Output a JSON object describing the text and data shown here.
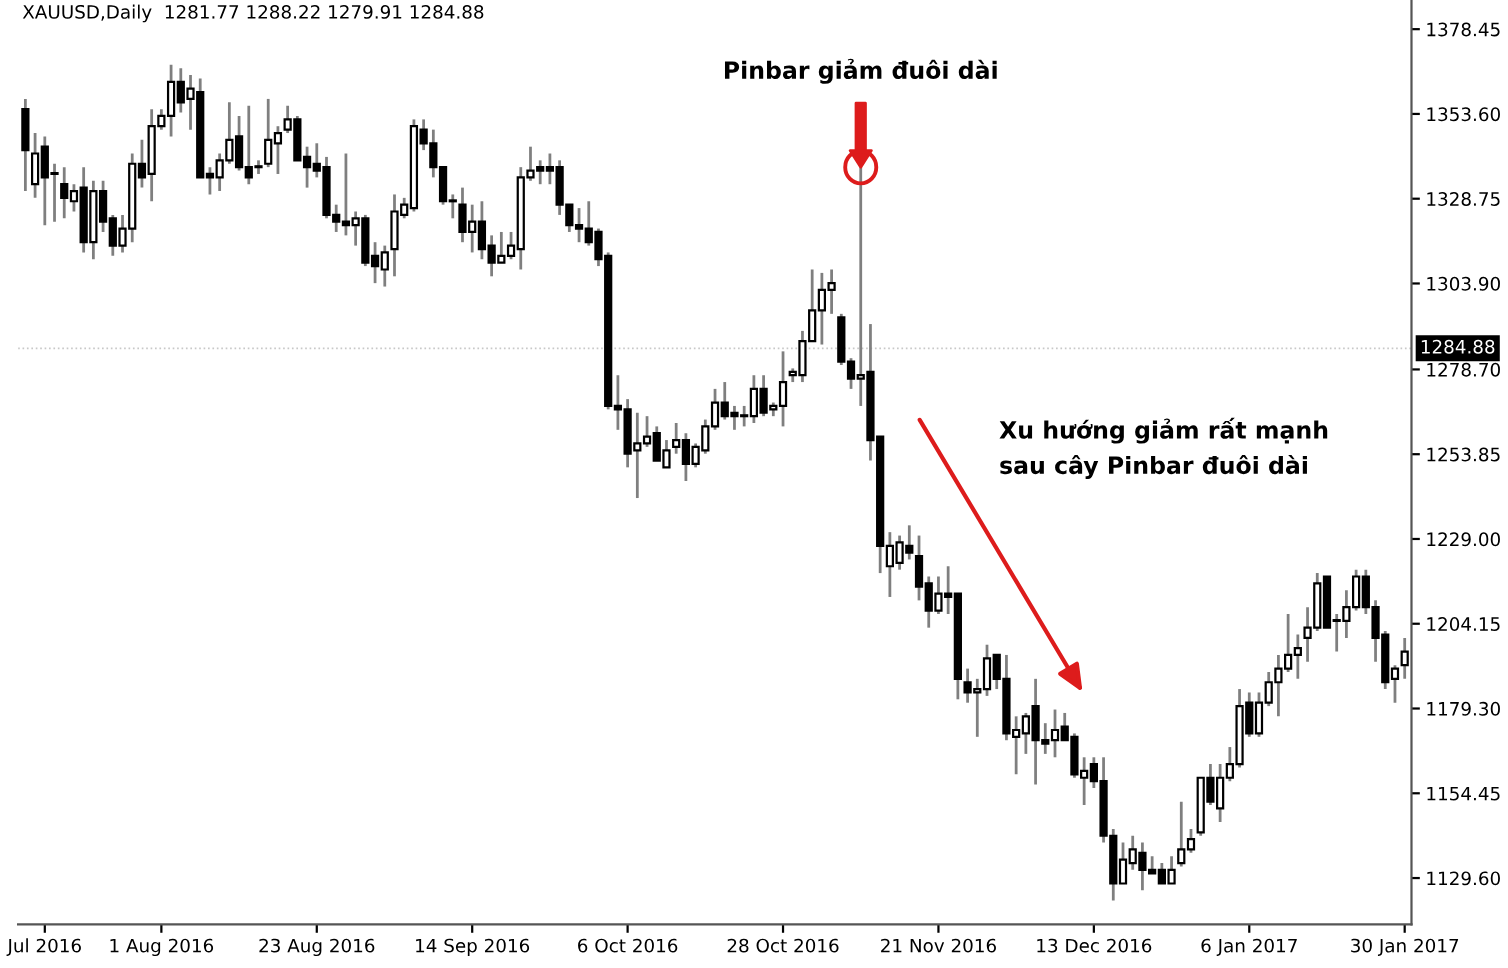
{
  "chart_data": {
    "type": "candlestick",
    "title": "XAUUSD,Daily  1281.77 1288.22 1279.91 1284.88",
    "categories": [
      null,
      null,
      "Jul 2016",
      null,
      null,
      null,
      null,
      null,
      null,
      null,
      null,
      null,
      null,
      null,
      "1 Aug 2016",
      null,
      null,
      null,
      null,
      null,
      null,
      null,
      null,
      null,
      null,
      null,
      null,
      null,
      null,
      null,
      "23 Aug 2016",
      null,
      null,
      null,
      null,
      null,
      null,
      null,
      null,
      null,
      null,
      null,
      null,
      null,
      null,
      null,
      "14 Sep 2016",
      null,
      null,
      null,
      null,
      null,
      null,
      null,
      null,
      null,
      null,
      null,
      null,
      null,
      null,
      null,
      "6 Oct 2016",
      null,
      null,
      null,
      null,
      null,
      null,
      null,
      null,
      null,
      null,
      null,
      null,
      null,
      null,
      null,
      "28 Oct 2016",
      null,
      null,
      null,
      null,
      null,
      null,
      null,
      null,
      null,
      null,
      null,
      null,
      null,
      null,
      null,
      "21 Nov 2016",
      null,
      null,
      null,
      null,
      null,
      null,
      null,
      null,
      null,
      null,
      null,
      null,
      null,
      null,
      null,
      "13 Dec 2016",
      null,
      null,
      null,
      null,
      null,
      null,
      null,
      null,
      null,
      null,
      null,
      null,
      null,
      null,
      null,
      "6 Jan 2017",
      null,
      null,
      null,
      null,
      null,
      null,
      null,
      null,
      null,
      null,
      null,
      null,
      null,
      null,
      null,
      "30 Jan 2017"
    ],
    "ohlc": [
      [
        1355,
        1358,
        1331,
        1343
      ],
      [
        1333,
        1348,
        1329,
        1342
      ],
      [
        1344,
        1347,
        1321,
        1335
      ],
      [
        1336,
        1339,
        1322,
        1336
      ],
      [
        1333,
        1338,
        1323,
        1329
      ],
      [
        1328,
        1333,
        1325,
        1331
      ],
      [
        1332,
        1338,
        1313,
        1316
      ],
      [
        1316,
        1334,
        1311,
        1331
      ],
      [
        1331,
        1334,
        1319,
        1322
      ],
      [
        1323,
        1324,
        1312,
        1315
      ],
      [
        1315,
        1324,
        1313,
        1320
      ],
      [
        1320,
        1342,
        1316,
        1339
      ],
      [
        1339,
        1346,
        1332,
        1335
      ],
      [
        1336,
        1355,
        1328,
        1350
      ],
      [
        1350,
        1355,
        1349,
        1353
      ],
      [
        1353,
        1368,
        1347,
        1363
      ],
      [
        1363,
        1367,
        1354,
        1357
      ],
      [
        1358,
        1365,
        1349,
        1361
      ],
      [
        1360,
        1364,
        1335,
        1335
      ],
      [
        1336,
        1338,
        1330,
        1335
      ],
      [
        1335,
        1342,
        1331,
        1340
      ],
      [
        1340,
        1357,
        1339,
        1346
      ],
      [
        1347,
        1353,
        1337,
        1338
      ],
      [
        1338,
        1356,
        1333,
        1335
      ],
      [
        1338,
        1340,
        1336,
        1338
      ],
      [
        1339,
        1358,
        1338,
        1346
      ],
      [
        1345,
        1350,
        1336,
        1348
      ],
      [
        1349,
        1356,
        1348,
        1352
      ],
      [
        1352,
        1353,
        1340,
        1340
      ],
      [
        1341,
        1344,
        1332,
        1338
      ],
      [
        1339,
        1345,
        1335,
        1337
      ],
      [
        1338,
        1341,
        1323,
        1324
      ],
      [
        1324,
        1327,
        1319,
        1322
      ],
      [
        1322,
        1342,
        1318,
        1321
      ],
      [
        1321,
        1325,
        1315,
        1323
      ],
      [
        1323,
        1324,
        1309,
        1310
      ],
      [
        1312,
        1316,
        1304,
        1309
      ],
      [
        1308,
        1315,
        1303,
        1313
      ],
      [
        1314,
        1330,
        1306,
        1325
      ],
      [
        1324,
        1329,
        1323,
        1327
      ],
      [
        1326,
        1352,
        1325,
        1350
      ],
      [
        1349,
        1352,
        1343,
        1345
      ],
      [
        1345,
        1349,
        1335,
        1338
      ],
      [
        1338,
        1338,
        1327,
        1328
      ],
      [
        1328,
        1330,
        1323,
        1328
      ],
      [
        1327,
        1332,
        1316,
        1319
      ],
      [
        1319,
        1327,
        1313,
        1322
      ],
      [
        1322,
        1328,
        1311,
        1314
      ],
      [
        1315,
        1318,
        1306,
        1310
      ],
      [
        1310,
        1319,
        1310,
        1312
      ],
      [
        1312,
        1319,
        1311,
        1315
      ],
      [
        1314,
        1338,
        1308,
        1335
      ],
      [
        1335,
        1344,
        1334,
        1337
      ],
      [
        1338,
        1340,
        1333,
        1337
      ],
      [
        1338,
        1342,
        1333,
        1337
      ],
      [
        1338,
        1340,
        1324,
        1327
      ],
      [
        1327,
        1327,
        1319,
        1321
      ],
      [
        1321,
        1326,
        1316,
        1320
      ],
      [
        1320,
        1328,
        1315,
        1316
      ],
      [
        1319,
        1320,
        1309,
        1311
      ],
      [
        1312,
        1313,
        1267,
        1268
      ],
      [
        1268,
        1277,
        1261,
        1267
      ],
      [
        1267,
        1270,
        1250,
        1254
      ],
      [
        1255,
        1266,
        1241,
        1257
      ],
      [
        1257,
        1265,
        1256,
        1259
      ],
      [
        1260,
        1262,
        1252,
        1252
      ],
      [
        1250,
        1258,
        1250,
        1255
      ],
      [
        1256,
        1263,
        1254,
        1258
      ],
      [
        1258,
        1260,
        1246,
        1251
      ],
      [
        1251,
        1257,
        1250,
        1256
      ],
      [
        1255,
        1264,
        1254,
        1262
      ],
      [
        1262,
        1273,
        1261,
        1269
      ],
      [
        1269,
        1275,
        1264,
        1265
      ],
      [
        1266,
        1268,
        1261,
        1265
      ],
      [
        1265,
        1268,
        1262,
        1265
      ],
      [
        1265,
        1277,
        1263,
        1273
      ],
      [
        1273,
        1277,
        1265,
        1266
      ],
      [
        1267,
        1269,
        1265,
        1268
      ],
      [
        1268,
        1284,
        1262,
        1275
      ],
      [
        1277,
        1279,
        1275,
        1278
      ],
      [
        1277,
        1290,
        1275,
        1287
      ],
      [
        1287,
        1308,
        1287,
        1296
      ],
      [
        1296,
        1307,
        1286,
        1302
      ],
      [
        1302,
        1308,
        1295,
        1304
      ],
      [
        1294,
        1295,
        1280,
        1281
      ],
      [
        1281,
        1282,
        1273,
        1276
      ],
      [
        1276,
        1338,
        1268,
        1277
      ],
      [
        1278,
        1292,
        1252,
        1258
      ],
      [
        1259,
        1259,
        1219,
        1227
      ],
      [
        1221,
        1231,
        1212,
        1227
      ],
      [
        1222,
        1230,
        1220,
        1228
      ],
      [
        1227,
        1233,
        1223,
        1225
      ],
      [
        1224,
        1230,
        1211,
        1215
      ],
      [
        1216,
        1218,
        1203,
        1208
      ],
      [
        1208,
        1218,
        1207,
        1213
      ],
      [
        1213,
        1221,
        1207,
        1212
      ],
      [
        1213,
        1213,
        1182,
        1188
      ],
      [
        1187,
        1191,
        1181,
        1184
      ],
      [
        1184,
        1188,
        1171,
        1185
      ],
      [
        1185,
        1198,
        1183,
        1194
      ],
      [
        1195,
        1195,
        1185,
        1188
      ],
      [
        1188,
        1195,
        1170,
        1172
      ],
      [
        1171,
        1177,
        1160,
        1173
      ],
      [
        1172,
        1178,
        1166,
        1177
      ],
      [
        1180,
        1188,
        1157,
        1170
      ],
      [
        1170,
        1175,
        1166,
        1169
      ],
      [
        1170,
        1179,
        1165,
        1173
      ],
      [
        1174,
        1178,
        1170,
        1170
      ],
      [
        1171,
        1172,
        1159,
        1160
      ],
      [
        1159,
        1165,
        1151,
        1161
      ],
      [
        1163,
        1165,
        1156,
        1158
      ],
      [
        1158,
        1165,
        1140,
        1142
      ],
      [
        1142,
        1144,
        1123,
        1128
      ],
      [
        1128,
        1140,
        1128,
        1135
      ],
      [
        1134,
        1142,
        1132,
        1138
      ],
      [
        1137,
        1140,
        1126,
        1132
      ],
      [
        1132,
        1136,
        1131,
        1131
      ],
      [
        1132,
        1134,
        1128,
        1128
      ],
      [
        1128,
        1136,
        1128,
        1132
      ],
      [
        1134,
        1152,
        1133,
        1138
      ],
      [
        1138,
        1144,
        1137,
        1141
      ],
      [
        1143,
        1159,
        1142,
        1159
      ],
      [
        1159,
        1163,
        1151,
        1152
      ],
      [
        1150,
        1163,
        1146,
        1159
      ],
      [
        1159,
        1168,
        1158,
        1163
      ],
      [
        1163,
        1185,
        1162,
        1180
      ],
      [
        1181,
        1184,
        1171,
        1172
      ],
      [
        1172,
        1184,
        1171,
        1181
      ],
      [
        1181,
        1190,
        1180,
        1187
      ],
      [
        1187,
        1195,
        1177,
        1191
      ],
      [
        1191,
        1207,
        1190,
        1195
      ],
      [
        1195,
        1201,
        1188,
        1197
      ],
      [
        1200,
        1209,
        1193,
        1203
      ],
      [
        1203,
        1219,
        1202,
        1216
      ],
      [
        1218,
        1218,
        1203,
        1203
      ],
      [
        1205,
        1207,
        1196,
        1205
      ],
      [
        1205,
        1214,
        1200,
        1209
      ],
      [
        1209,
        1220,
        1208,
        1218
      ],
      [
        1218,
        1220,
        1207,
        1209
      ],
      [
        1209,
        1211,
        1193,
        1200
      ],
      [
        1201,
        1202,
        1185,
        1187
      ],
      [
        1188,
        1192,
        1181,
        1191
      ],
      [
        1192,
        1200,
        1188,
        1196
      ]
    ],
    "color": "#000000",
    "ylim": [
      1116,
      1387
    ],
    "yticks": [
      1378.45,
      {
        "value": 1353.6,
        "label": "1353.60"
      },
      1328.75,
      {
        "value": 1303.9,
        "label": "1303.90"
      },
      {
        "value": 1278.7,
        "label": "1278.70"
      },
      1253.85,
      {
        "value": 1229.0,
        "label": "1229.00"
      },
      1204.15,
      {
        "value": 1179.3,
        "label": "1179.30"
      },
      1154.45,
      {
        "value": 1129.6,
        "label": "1129.60"
      }
    ],
    "ref_lines": [
      {
        "axis": "y",
        "value": 1284.88,
        "label": "1284.88"
      }
    ],
    "annotations": [
      "Pinbar giảm đuôi dài",
      "Xu hướng giảm rất mạnh\nsau cây Pinbar đuôi dài"
    ],
    "grid": false,
    "legend": false
  }
}
